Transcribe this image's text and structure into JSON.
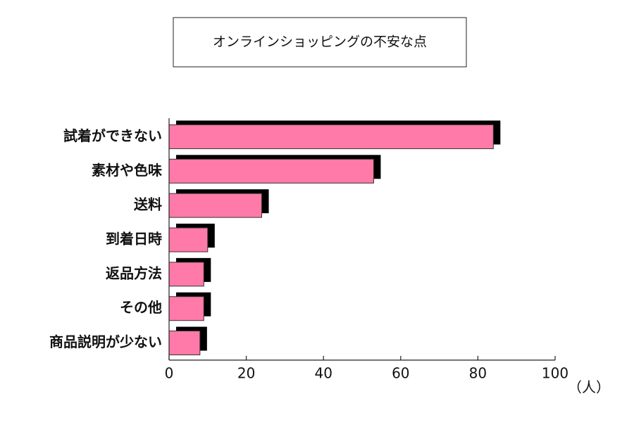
{
  "chart_data": {
    "type": "barh",
    "title": "オンラインショッピングの不安な点",
    "categories": [
      "試着ができない",
      "素材や色味",
      "送料",
      "到着日時",
      "返品方法",
      "その他",
      "商品説明が少ない"
    ],
    "values": [
      84,
      53,
      24,
      10,
      9,
      9,
      8
    ],
    "color": "#ff7aa8",
    "xlim": [
      0,
      100
    ],
    "xticks": [
      0,
      20,
      40,
      60,
      80,
      100
    ],
    "x_label": "（人）"
  }
}
